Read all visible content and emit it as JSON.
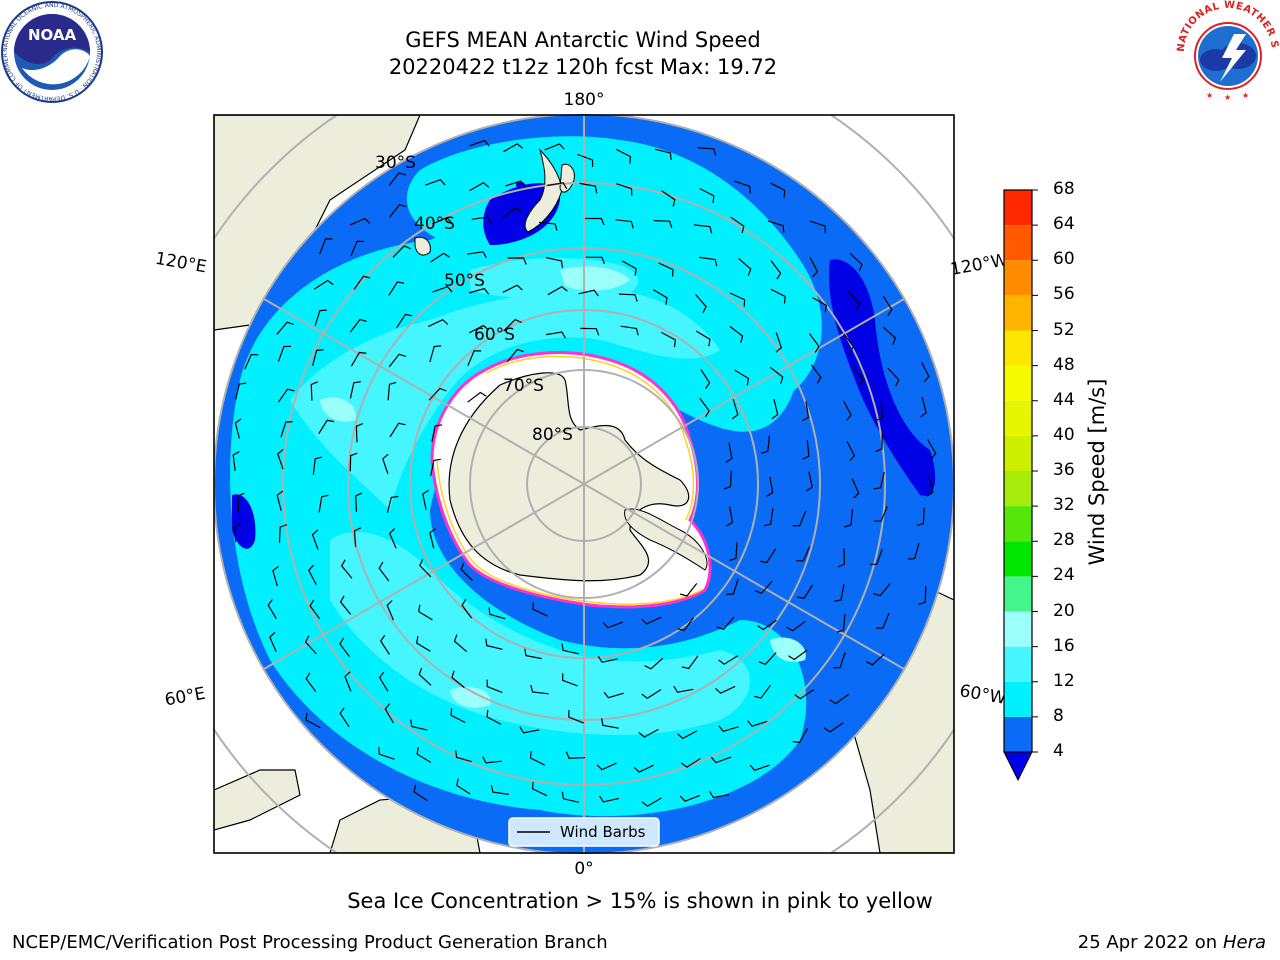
{
  "header": {
    "title_line1": "GEFS MEAN Antarctic Wind Speed",
    "title_line2": "20220422 t12z 120h fcst   Max: 19.72"
  },
  "map": {
    "longitude_labels": {
      "top": "180°",
      "bottom": "0°",
      "upper_left": "120°E",
      "upper_right": "120°W",
      "lower_left": "60°E",
      "lower_right": "60°W"
    },
    "latitude_labels": [
      "30°S",
      "40°S",
      "50°S",
      "60°S",
      "70°S",
      "80°S"
    ],
    "legend_label": "Wind Barbs",
    "colors": {
      "land": "#ededdc",
      "ocean_4_8": "#0a6cf6",
      "ocean_8_12": "#00f0ff",
      "ocean_12_16": "#45f5ff",
      "ocean_16_20": "#9bfffa",
      "ocean_low": "#0000e6",
      "sea_ice": "#ff33cc"
    }
  },
  "colorbar": {
    "title": "Wind Speed [m/s]",
    "ticks": [
      "4",
      "8",
      "12",
      "16",
      "20",
      "24",
      "28",
      "32",
      "36",
      "40",
      "44",
      "48",
      "52",
      "56",
      "60",
      "64",
      "68"
    ],
    "colors": [
      "#0a6cf6",
      "#00f0ff",
      "#45f5ff",
      "#9bfffa",
      "#45f58c",
      "#00e600",
      "#55e60a",
      "#a6eb0a",
      "#ccf000",
      "#e6f500",
      "#f5fa00",
      "#ffe600",
      "#ffb400",
      "#ff8c00",
      "#ff5a00",
      "#ff2800"
    ],
    "extend_color": "#0000e6"
  },
  "footer": {
    "caption": "Sea Ice Concentration > 15% is shown in pink to yellow",
    "left": "NCEP/EMC/Verification Post Processing Product Generation Branch",
    "right_date": "25 Apr 2022 on ",
    "right_host": "Hera"
  },
  "logos": {
    "noaa": "NOAA",
    "noaa_ring": "NATIONAL OCEANIC AND ATMOSPHERIC ADMINISTRATION · U.S. DEPARTMENT OF COMMERCE",
    "nws_ring": "NATIONAL WEATHER SERVICE"
  }
}
